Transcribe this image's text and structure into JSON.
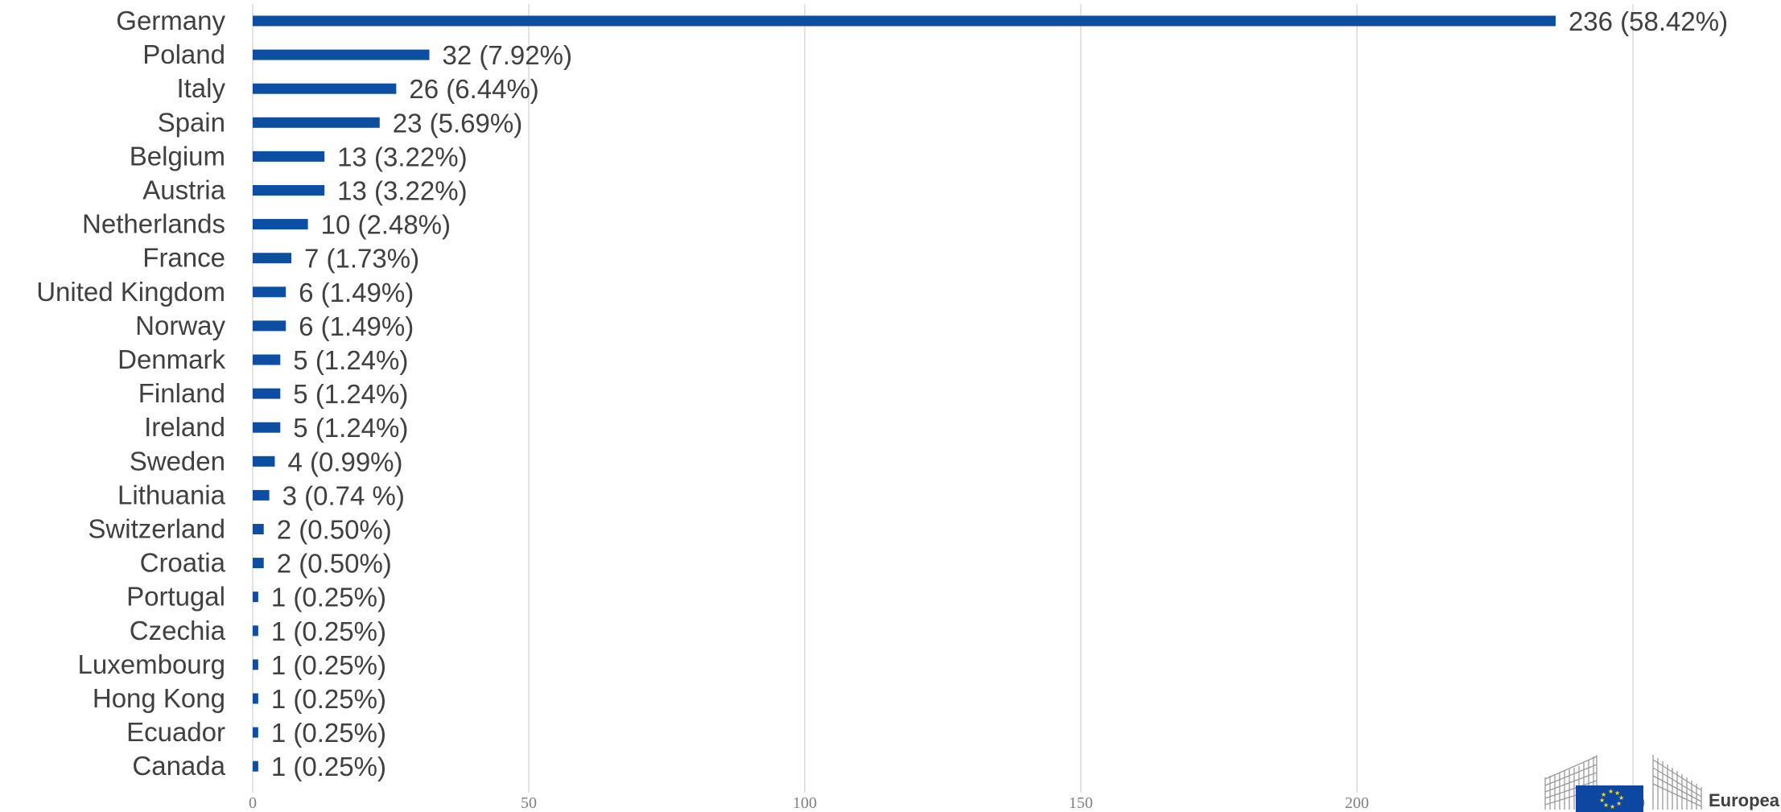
{
  "chart_data": {
    "type": "bar",
    "orientation": "horizontal",
    "categories": [
      "Germany",
      "Poland",
      "Italy",
      "Spain",
      "Belgium",
      "Austria",
      "Netherlands",
      "France",
      "United Kingdom",
      "Norway",
      "Denmark",
      "Finland",
      "Ireland",
      "Sweden",
      "Lithuania",
      "Switzerland",
      "Croatia",
      "Portugal",
      "Czechia",
      "Luxembourg",
      "Hong Kong",
      "Ecuador",
      "Canada"
    ],
    "values": [
      236,
      32,
      26,
      23,
      13,
      13,
      10,
      7,
      6,
      6,
      5,
      5,
      5,
      4,
      3,
      2,
      2,
      1,
      1,
      1,
      1,
      1,
      1
    ],
    "data_labels": [
      "236 (58.42%)",
      "32 (7.92%)",
      "26 (6.44%)",
      "23 (5.69%)",
      "13 (3.22%)",
      "13 (3.22%)",
      "10 (2.48%)",
      "7 (1.73%)",
      "6 (1.49%)",
      "6 (1.49%)",
      "5 (1.24%)",
      "5 (1.24%)",
      "5 (1.24%)",
      "4 (0.99%)",
      "3 (0.74 %)",
      "2 (0.50%)",
      "2 (0.50%)",
      "1 (0.25%)",
      "1 (0.25%)",
      "1 (0.25%)",
      "1 (0.25%)",
      "1 (0.25%)",
      "1 (0.25%)"
    ],
    "xticks": [
      "0",
      "50",
      "100",
      "150",
      "200",
      "250"
    ],
    "xlim": [
      0,
      250
    ],
    "grid": true,
    "bar_color": "#0b4ea2"
  },
  "logo": {
    "text": "Europea",
    "flag_color": "#0e47a1",
    "star_color": "#ffdd00"
  }
}
